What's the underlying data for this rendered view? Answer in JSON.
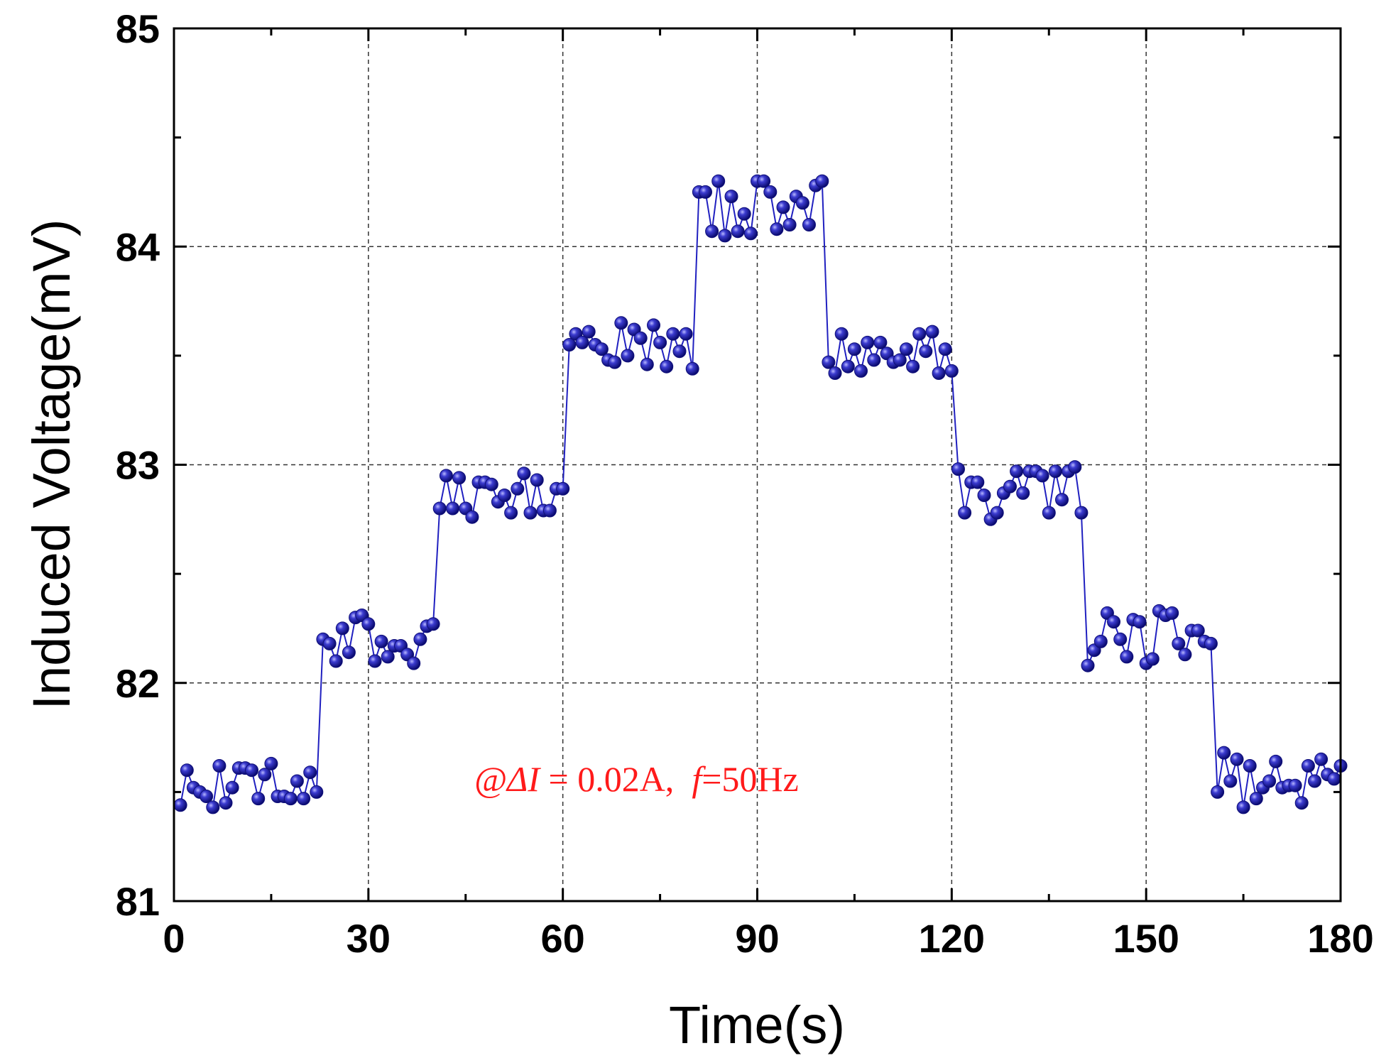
{
  "chart_data": {
    "type": "line",
    "title": "",
    "xlabel": "Time(s)",
    "ylabel": "Induced Voltage(mV)",
    "xlim": [
      0,
      180
    ],
    "ylim": [
      81,
      85
    ],
    "xticks": [
      0,
      30,
      60,
      90,
      120,
      150,
      180
    ],
    "yticks": [
      81,
      82,
      83,
      84,
      85
    ],
    "grid": true,
    "annotation": {
      "prefix": "@",
      "symbol": "ΔI",
      "eq1": " = 0.02A,  ",
      "f": "f",
      "eq2": "=50Hz"
    },
    "series": [
      {
        "name": "Induced Voltage",
        "color": "#1c1c9e",
        "x": [
          1,
          2,
          3,
          4,
          5,
          6,
          7,
          8,
          9,
          10,
          11,
          12,
          13,
          14,
          15,
          16,
          17,
          18,
          19,
          20,
          21,
          22,
          23,
          24,
          25,
          26,
          27,
          28,
          29,
          30,
          31,
          32,
          33,
          34,
          35,
          36,
          37,
          38,
          39,
          40,
          41,
          42,
          43,
          44,
          45,
          46,
          47,
          48,
          49,
          50,
          51,
          52,
          53,
          54,
          55,
          56,
          57,
          58,
          59,
          60,
          61,
          62,
          63,
          64,
          65,
          66,
          67,
          68,
          69,
          70,
          71,
          72,
          73,
          74,
          75,
          76,
          77,
          78,
          79,
          80,
          81,
          82,
          83,
          84,
          85,
          86,
          87,
          88,
          89,
          90,
          91,
          92,
          93,
          94,
          95,
          96,
          97,
          98,
          99,
          100,
          101,
          102,
          103,
          104,
          105,
          106,
          107,
          108,
          109,
          110,
          111,
          112,
          113,
          114,
          115,
          116,
          117,
          118,
          119,
          120,
          121,
          122,
          123,
          124,
          125,
          126,
          127,
          128,
          129,
          130,
          131,
          132,
          133,
          134,
          135,
          136,
          137,
          138,
          139,
          140,
          141,
          142,
          143,
          144,
          145,
          146,
          147,
          148,
          149,
          150,
          151,
          152,
          153,
          154,
          155,
          156,
          157,
          158,
          159,
          160,
          161,
          162,
          163,
          164,
          165,
          166,
          167,
          168,
          169,
          170,
          171,
          172,
          173,
          174,
          175,
          176,
          177,
          178,
          179,
          180
        ],
        "values": [
          81.44,
          81.6,
          81.52,
          81.5,
          81.48,
          81.43,
          81.62,
          81.45,
          81.52,
          81.61,
          81.61,
          81.6,
          81.47,
          81.58,
          81.63,
          81.48,
          81.48,
          81.47,
          81.55,
          81.47,
          81.59,
          81.5,
          82.2,
          82.18,
          82.1,
          82.25,
          82.14,
          82.3,
          82.31,
          82.27,
          82.1,
          82.19,
          82.12,
          82.17,
          82.17,
          82.13,
          82.09,
          82.2,
          82.26,
          82.27,
          82.8,
          82.95,
          82.8,
          82.94,
          82.8,
          82.76,
          82.92,
          82.92,
          82.91,
          82.83,
          82.86,
          82.78,
          82.89,
          82.96,
          82.78,
          82.93,
          82.79,
          82.79,
          82.89,
          82.89,
          83.55,
          83.6,
          83.56,
          83.61,
          83.55,
          83.53,
          83.48,
          83.47,
          83.65,
          83.5,
          83.62,
          83.58,
          83.46,
          83.64,
          83.56,
          83.45,
          83.6,
          83.52,
          83.6,
          83.44,
          84.25,
          84.25,
          84.07,
          84.3,
          84.05,
          84.23,
          84.07,
          84.15,
          84.06,
          84.3,
          84.3,
          84.25,
          84.08,
          84.18,
          84.1,
          84.23,
          84.2,
          84.1,
          84.28,
          84.3,
          83.47,
          83.42,
          83.6,
          83.45,
          83.53,
          83.43,
          83.56,
          83.48,
          83.56,
          83.51,
          83.47,
          83.48,
          83.53,
          83.45,
          83.6,
          83.52,
          83.61,
          83.42,
          83.53,
          83.43,
          82.98,
          82.78,
          82.92,
          82.92,
          82.86,
          82.75,
          82.78,
          82.87,
          82.9,
          82.97,
          82.87,
          82.97,
          82.97,
          82.95,
          82.78,
          82.97,
          82.84,
          82.97,
          82.99,
          82.78,
          82.08,
          82.15,
          82.19,
          82.32,
          82.28,
          82.2,
          82.12,
          82.29,
          82.28,
          82.09,
          82.11,
          82.33,
          82.31,
          82.32,
          82.18,
          82.13,
          82.24,
          82.24,
          82.19,
          82.18,
          81.5,
          81.68,
          81.55,
          81.65,
          81.43,
          81.62,
          81.47,
          81.52,
          81.55,
          81.64,
          81.52,
          81.53,
          81.53,
          81.45,
          81.62,
          81.55,
          81.65,
          81.58,
          81.56,
          81.62
        ]
      }
    ]
  }
}
